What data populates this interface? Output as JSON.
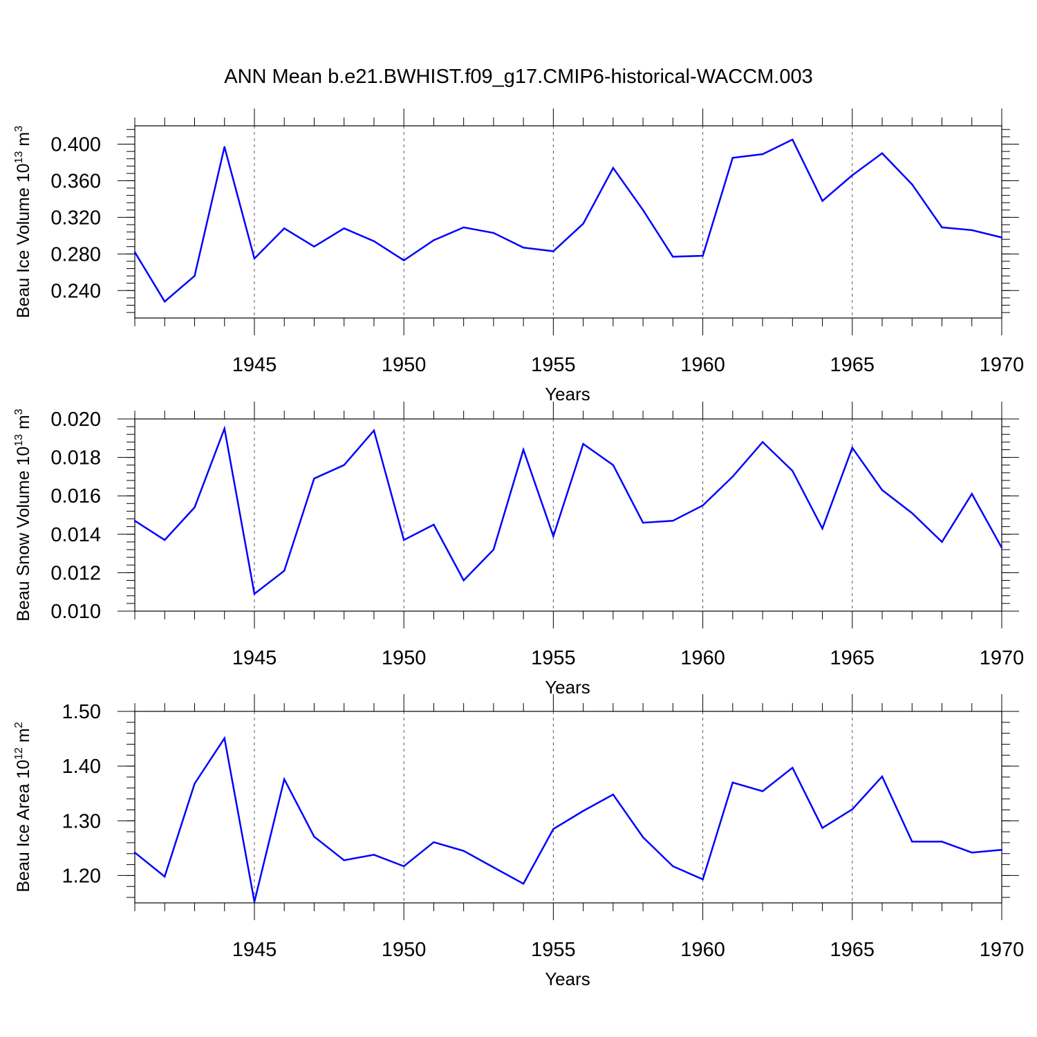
{
  "figure": {
    "title": "ANN Mean b.e21.BWHIST.f09_g17.CMIP6-historical-WACCM.003",
    "line_color": "#0000ff"
  },
  "chart_data": [
    {
      "type": "line",
      "ylabel": {
        "prefix": "Beau Ice Volume 10",
        "exponent": "13",
        "unit": " m",
        "unit_exponent": "3"
      },
      "xlabel": "Years",
      "xlim": [
        1941,
        1970
      ],
      "ylim": [
        0.21,
        0.42
      ],
      "yticks": [
        0.24,
        0.28,
        0.32,
        0.36,
        0.4
      ],
      "ytick_labels": [
        "0.240",
        "0.280",
        "0.320",
        "0.360",
        "0.400"
      ],
      "yminor_step": 0.008,
      "xticks": [
        1945,
        1950,
        1955,
        1960,
        1965,
        1970
      ],
      "xtick_labels": [
        "1945",
        "1950",
        "1955",
        "1960",
        "1965",
        "1970"
      ],
      "grid": "vertical dashed at major x ticks",
      "x": [
        1941,
        1942,
        1943,
        1944,
        1945,
        1946,
        1947,
        1948,
        1949,
        1950,
        1951,
        1952,
        1953,
        1954,
        1955,
        1956,
        1957,
        1958,
        1959,
        1960,
        1961,
        1962,
        1963,
        1964,
        1965,
        1966,
        1967,
        1968,
        1969,
        1970
      ],
      "values": [
        0.282,
        0.228,
        0.256,
        0.397,
        0.275,
        0.308,
        0.288,
        0.308,
        0.294,
        0.273,
        0.295,
        0.309,
        0.303,
        0.287,
        0.283,
        0.313,
        0.374,
        0.328,
        0.277,
        0.278,
        0.385,
        0.389,
        0.405,
        0.338,
        0.366,
        0.39,
        0.356,
        0.309,
        0.306,
        0.298
      ]
    },
    {
      "type": "line",
      "ylabel": {
        "prefix": "Beau Snow Volume 10",
        "exponent": "13",
        "unit": " m",
        "unit_exponent": "3"
      },
      "xlabel": "Years",
      "xlim": [
        1941,
        1970
      ],
      "ylim": [
        0.01,
        0.02
      ],
      "yticks": [
        0.01,
        0.012,
        0.014,
        0.016,
        0.018,
        0.02
      ],
      "ytick_labels": [
        "0.010",
        "0.012",
        "0.014",
        "0.016",
        "0.018",
        "0.020"
      ],
      "yminor_step": 0.0004,
      "xticks": [
        1945,
        1950,
        1955,
        1960,
        1965,
        1970
      ],
      "xtick_labels": [
        "1945",
        "1950",
        "1955",
        "1960",
        "1965",
        "1970"
      ],
      "grid": "vertical dashed at major x ticks",
      "x": [
        1941,
        1942,
        1943,
        1944,
        1945,
        1946,
        1947,
        1948,
        1949,
        1950,
        1951,
        1952,
        1953,
        1954,
        1955,
        1956,
        1957,
        1958,
        1959,
        1960,
        1961,
        1962,
        1963,
        1964,
        1965,
        1966,
        1967,
        1968,
        1969,
        1970
      ],
      "values": [
        0.0147,
        0.0137,
        0.0154,
        0.0195,
        0.0109,
        0.0121,
        0.0169,
        0.0176,
        0.0194,
        0.0137,
        0.0145,
        0.0116,
        0.0132,
        0.0184,
        0.0139,
        0.0187,
        0.0176,
        0.0146,
        0.0147,
        0.0155,
        0.017,
        0.0188,
        0.0173,
        0.0143,
        0.0185,
        0.0163,
        0.0151,
        0.0136,
        0.0161,
        0.0133
      ]
    },
    {
      "type": "line",
      "ylabel": {
        "prefix": "Beau Ice Area 10",
        "exponent": "12",
        "unit": " m",
        "unit_exponent": "2"
      },
      "xlabel": "Years",
      "xlim": [
        1941,
        1970
      ],
      "ylim": [
        1.15,
        1.5
      ],
      "yticks": [
        1.2,
        1.3,
        1.4,
        1.5
      ],
      "ytick_labels": [
        "1.20",
        "1.30",
        "1.40",
        "1.50"
      ],
      "yminor_step": 0.02,
      "xticks": [
        1945,
        1950,
        1955,
        1960,
        1965,
        1970
      ],
      "xtick_labels": [
        "1945",
        "1950",
        "1955",
        "1960",
        "1965",
        "1970"
      ],
      "grid": "vertical dashed at major x ticks",
      "x": [
        1941,
        1942,
        1943,
        1944,
        1945,
        1946,
        1947,
        1948,
        1949,
        1950,
        1951,
        1952,
        1953,
        1954,
        1955,
        1956,
        1957,
        1958,
        1959,
        1960,
        1961,
        1962,
        1963,
        1964,
        1965,
        1966,
        1967,
        1968,
        1969,
        1970
      ],
      "values": [
        1.242,
        1.198,
        1.368,
        1.451,
        1.152,
        1.376,
        1.271,
        1.228,
        1.238,
        1.217,
        1.261,
        1.245,
        1.215,
        1.185,
        1.285,
        1.318,
        1.348,
        1.27,
        1.217,
        1.193,
        1.37,
        1.354,
        1.397,
        1.287,
        1.321,
        1.381,
        1.262,
        1.262,
        1.242,
        1.247
      ]
    }
  ]
}
